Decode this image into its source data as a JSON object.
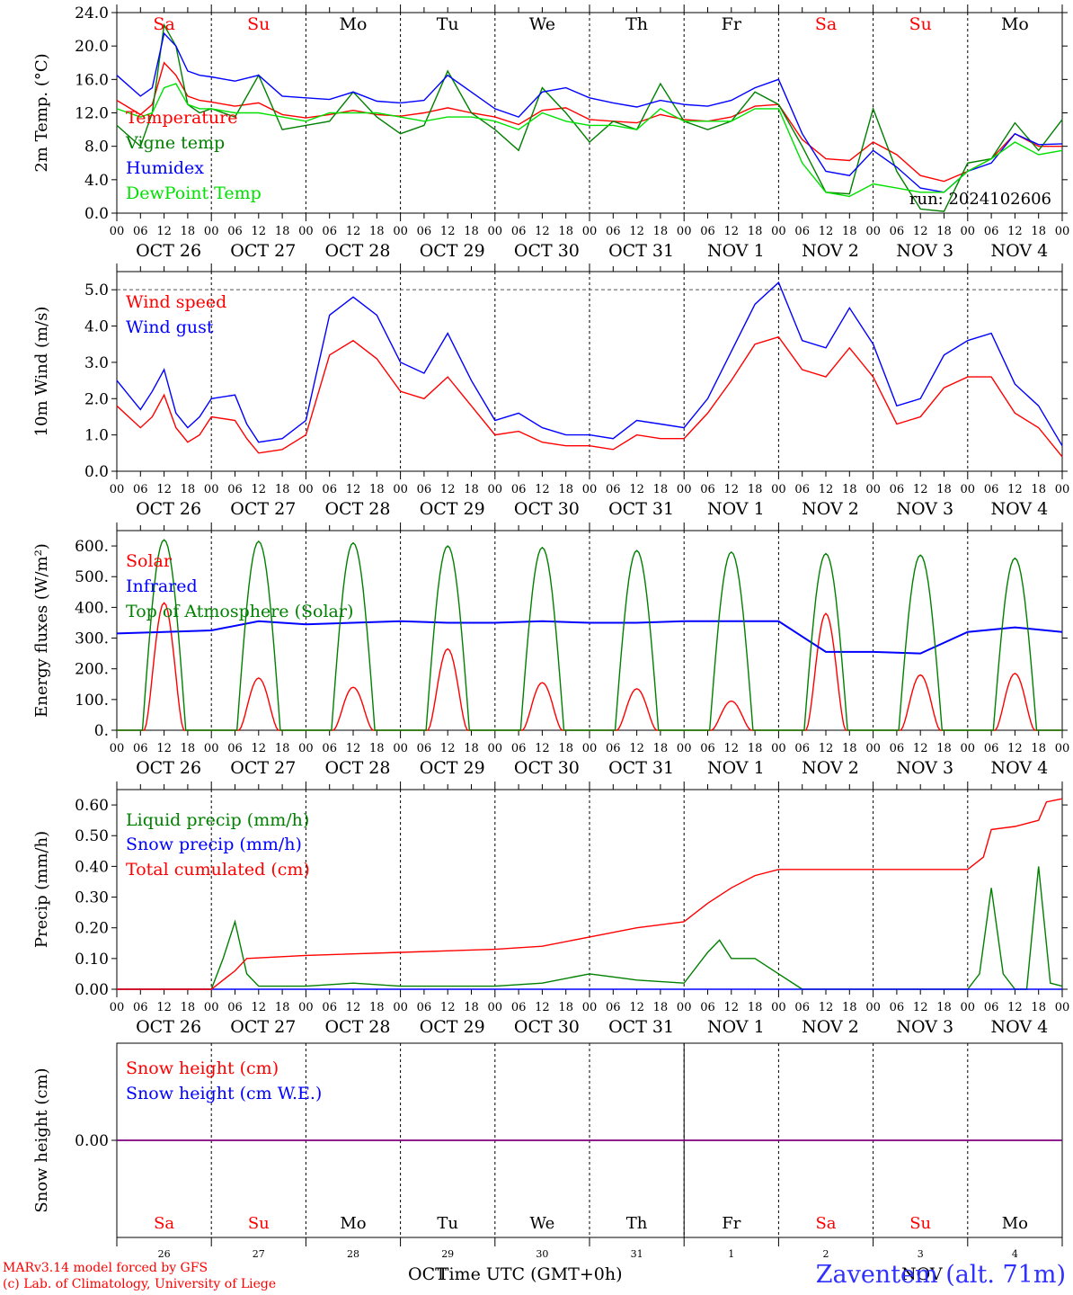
{
  "run_label": "run: 2024102606",
  "footer": {
    "model_line": "MARv3.14 model forced by GFS",
    "credit_line": "(c) Lab. of Climatology, University of Liege",
    "axis_title": "Time UTC (GMT+0h)",
    "left_month": "OCT",
    "right_month": "NOV",
    "station": "Zaventem (alt. 71m)"
  },
  "days": [
    {
      "weekday": "Sa",
      "date": "OCT 26",
      "num": "26",
      "weekend": true
    },
    {
      "weekday": "Su",
      "date": "OCT 27",
      "num": "27",
      "weekend": true
    },
    {
      "weekday": "Mo",
      "date": "OCT 28",
      "num": "28",
      "weekend": false
    },
    {
      "weekday": "Tu",
      "date": "OCT 29",
      "num": "29",
      "weekend": false
    },
    {
      "weekday": "We",
      "date": "OCT 30",
      "num": "30",
      "weekend": false
    },
    {
      "weekday": "Th",
      "date": "OCT 31",
      "num": "31",
      "weekend": false
    },
    {
      "weekday": "Fr",
      "date": "NOV  1",
      "num": "1",
      "weekend": false
    },
    {
      "weekday": "Sa",
      "date": "NOV  2",
      "num": "2",
      "weekend": true
    },
    {
      "weekday": "Su",
      "date": "NOV  3",
      "num": "3",
      "weekend": true
    },
    {
      "weekday": "Mo",
      "date": "NOV  4",
      "num": "4",
      "weekend": false
    }
  ],
  "hour_ticks": [
    "00",
    "06",
    "12",
    "18"
  ],
  "colors": {
    "red": "#ff0000",
    "green": "#008000",
    "blue": "#0000ff",
    "lightgreen": "#00e000",
    "purple": "#800080"
  },
  "chart_data": [
    {
      "type": "line",
      "ylabel": "2m Temp. (°C)",
      "ylim": [
        0,
        24
      ],
      "yticks": [
        "0.0",
        "4.0",
        "8.0",
        "12.0",
        "16.0",
        "20.0",
        "24.0"
      ],
      "x_unit": "hours since OCT 26 00 UTC",
      "series": [
        {
          "name": "Temperature",
          "color": "#ff0000",
          "x": [
            0,
            6,
            9,
            12,
            15,
            18,
            21,
            24,
            30,
            36,
            42,
            48,
            54,
            60,
            66,
            72,
            78,
            84,
            90,
            96,
            102,
            108,
            114,
            120,
            126,
            132,
            138,
            144,
            150,
            156,
            162,
            168,
            174,
            180,
            186,
            192,
            198,
            204,
            210,
            216,
            222,
            228,
            234,
            240
          ],
          "values": [
            13.5,
            11.8,
            13.0,
            18.0,
            16.5,
            14.0,
            13.5,
            13.3,
            12.8,
            13.2,
            11.8,
            11.4,
            11.8,
            12.3,
            11.8,
            11.6,
            12.0,
            12.6,
            12.0,
            11.5,
            10.6,
            12.3,
            12.6,
            11.2,
            11.0,
            10.8,
            11.8,
            11.2,
            11.0,
            11.5,
            12.8,
            13.0,
            8.8,
            6.5,
            6.3,
            8.5,
            7.0,
            4.5,
            3.8,
            5.0,
            6.5,
            9.5,
            8.0,
            8.0
          ]
        },
        {
          "name": "Vigne temp",
          "color": "#008000",
          "x": [
            0,
            6,
            9,
            12,
            15,
            18,
            21,
            24,
            30,
            36,
            42,
            48,
            54,
            60,
            66,
            72,
            78,
            84,
            90,
            96,
            102,
            108,
            114,
            120,
            126,
            132,
            138,
            144,
            150,
            156,
            162,
            168,
            174,
            180,
            186,
            192,
            198,
            204,
            210,
            216,
            222,
            228,
            234,
            240
          ],
          "values": [
            10.5,
            8.0,
            12.0,
            22.5,
            20.0,
            13.0,
            12.0,
            12.5,
            11.5,
            16.5,
            10.0,
            10.5,
            11.0,
            14.5,
            11.5,
            9.5,
            10.5,
            17.0,
            12.0,
            10.0,
            7.5,
            15.0,
            12.0,
            8.5,
            11.0,
            10.0,
            15.5,
            11.0,
            10.0,
            11.0,
            14.5,
            13.0,
            8.0,
            2.5,
            2.3,
            12.5,
            5.0,
            0.5,
            0.2,
            6.0,
            6.5,
            10.8,
            7.5,
            11.2
          ]
        },
        {
          "name": "Humidex",
          "color": "#0000ff",
          "x": [
            0,
            6,
            9,
            12,
            15,
            18,
            21,
            24,
            30,
            36,
            42,
            48,
            54,
            60,
            66,
            72,
            78,
            84,
            90,
            96,
            102,
            108,
            114,
            120,
            126,
            132,
            138,
            144,
            150,
            156,
            162,
            168,
            174,
            180,
            186,
            192,
            198,
            204,
            210,
            216,
            222,
            228,
            234,
            240
          ],
          "values": [
            16.5,
            14.0,
            15.0,
            21.5,
            20.0,
            17.0,
            16.5,
            16.3,
            15.8,
            16.5,
            14.0,
            13.8,
            13.6,
            14.5,
            13.4,
            13.2,
            13.5,
            16.5,
            14.5,
            12.5,
            11.5,
            14.5,
            15.0,
            13.8,
            13.2,
            12.7,
            13.5,
            13.0,
            12.8,
            13.5,
            15.0,
            16.0,
            9.5,
            5.0,
            4.5,
            7.5,
            5.5,
            3.0,
            2.5,
            5.0,
            6.0,
            9.5,
            8.2,
            8.3
          ]
        },
        {
          "name": "DewPoint Temp",
          "color": "#00e000",
          "x": [
            0,
            6,
            9,
            12,
            15,
            18,
            21,
            24,
            30,
            36,
            42,
            48,
            54,
            60,
            66,
            72,
            78,
            84,
            90,
            96,
            102,
            108,
            114,
            120,
            126,
            132,
            138,
            144,
            150,
            156,
            162,
            168,
            174,
            180,
            186,
            192,
            198,
            204,
            210,
            216,
            222,
            228,
            234,
            240
          ],
          "values": [
            12.5,
            11.5,
            12.0,
            15.0,
            15.5,
            13.0,
            12.5,
            12.5,
            12.0,
            12.0,
            11.5,
            11.0,
            12.0,
            12.0,
            12.0,
            11.5,
            11.0,
            11.5,
            11.5,
            11.0,
            10.0,
            12.0,
            11.0,
            10.5,
            10.5,
            10.0,
            12.5,
            11.0,
            11.0,
            11.0,
            12.5,
            12.5,
            6.0,
            2.5,
            2.0,
            3.5,
            3.0,
            2.5,
            2.5,
            5.0,
            6.5,
            8.5,
            7.0,
            7.5
          ]
        }
      ]
    },
    {
      "type": "line",
      "ylabel": "10m Wind (m/s)",
      "ylim": [
        0,
        5.5
      ],
      "yticks": [
        "0.0",
        "1.0",
        "2.0",
        "3.0",
        "4.0",
        "5.0"
      ],
      "reference_line": 5.0,
      "series": [
        {
          "name": "Wind speed",
          "color": "#ff0000",
          "x": [
            0,
            6,
            9,
            12,
            15,
            18,
            21,
            24,
            30,
            33,
            36,
            42,
            48,
            54,
            60,
            66,
            72,
            78,
            84,
            90,
            96,
            102,
            108,
            114,
            120,
            126,
            132,
            138,
            144,
            150,
            156,
            162,
            168,
            174,
            180,
            186,
            192,
            198,
            204,
            210,
            216,
            222,
            228,
            234,
            240
          ],
          "values": [
            1.8,
            1.2,
            1.5,
            2.1,
            1.2,
            0.8,
            1.0,
            1.5,
            1.4,
            0.9,
            0.5,
            0.6,
            1.0,
            3.2,
            3.6,
            3.1,
            2.2,
            2.0,
            2.6,
            1.8,
            1.0,
            1.1,
            0.8,
            0.7,
            0.7,
            0.6,
            1.0,
            0.9,
            0.9,
            1.6,
            2.5,
            3.5,
            3.7,
            2.8,
            2.6,
            3.4,
            2.6,
            1.3,
            1.5,
            2.3,
            2.6,
            2.6,
            1.6,
            1.2,
            0.4
          ]
        },
        {
          "name": "Wind gust",
          "color": "#0000ff",
          "x": [
            0,
            6,
            9,
            12,
            15,
            18,
            21,
            24,
            30,
            33,
            36,
            42,
            48,
            54,
            60,
            66,
            72,
            78,
            84,
            90,
            96,
            102,
            108,
            114,
            120,
            126,
            132,
            138,
            144,
            150,
            156,
            162,
            168,
            174,
            180,
            186,
            192,
            198,
            204,
            210,
            216,
            222,
            228,
            234,
            240
          ],
          "values": [
            2.5,
            1.7,
            2.2,
            2.8,
            1.6,
            1.2,
            1.5,
            2.0,
            2.1,
            1.3,
            0.8,
            0.9,
            1.4,
            4.3,
            4.8,
            4.3,
            3.0,
            2.7,
            3.8,
            2.5,
            1.4,
            1.6,
            1.2,
            1.0,
            1.0,
            0.9,
            1.4,
            1.3,
            1.2,
            2.0,
            3.3,
            4.6,
            5.2,
            3.6,
            3.4,
            4.5,
            3.5,
            1.8,
            2.0,
            3.2,
            3.6,
            3.8,
            2.4,
            1.8,
            0.7
          ]
        }
      ]
    },
    {
      "type": "line",
      "ylabel": "Energy fluxes (W/m²)",
      "ylim": [
        0,
        650
      ],
      "yticks": [
        "0.",
        "100.",
        "200.",
        "300.",
        "400.",
        "500.",
        "600."
      ],
      "series": [
        {
          "name": "Solar",
          "color": "#ff0000",
          "daily_peaks": [
            415,
            170,
            140,
            265,
            155,
            135,
            95,
            380,
            180,
            185
          ],
          "peak_hour": 12
        },
        {
          "name": "Infrared",
          "color": "#0000ff",
          "x": [
            0,
            12,
            24,
            36,
            48,
            60,
            72,
            84,
            96,
            108,
            120,
            132,
            144,
            156,
            168,
            180,
            192,
            204,
            216,
            228,
            240
          ],
          "values": [
            315,
            320,
            325,
            355,
            345,
            350,
            355,
            350,
            350,
            355,
            350,
            350,
            355,
            355,
            355,
            255,
            255,
            250,
            320,
            335,
            320
          ]
        },
        {
          "name": "Top of Atmosphere (Solar)",
          "color": "#008000",
          "daily_peaks": [
            620,
            615,
            610,
            600,
            595,
            585,
            580,
            575,
            570,
            560
          ],
          "peak_hour": 12
        }
      ]
    },
    {
      "type": "line",
      "ylabel": "Precip (mm/h)",
      "ylim": [
        0,
        0.65
      ],
      "yticks": [
        "0.00",
        "0.10",
        "0.20",
        "0.30",
        "0.40",
        "0.50",
        "0.60"
      ],
      "series": [
        {
          "name": "Liquid precip (mm/h)",
          "color": "#008000",
          "x": [
            0,
            24,
            27,
            30,
            33,
            36,
            42,
            48,
            60,
            72,
            96,
            108,
            120,
            126,
            132,
            144,
            150,
            153,
            156,
            162,
            168,
            174,
            216,
            219,
            222,
            225,
            228,
            231,
            234,
            237,
            240
          ],
          "values": [
            0.0,
            0.0,
            0.1,
            0.22,
            0.05,
            0.01,
            0.01,
            0.01,
            0.02,
            0.01,
            0.01,
            0.02,
            0.05,
            0.04,
            0.03,
            0.02,
            0.12,
            0.16,
            0.1,
            0.1,
            0.05,
            0.0,
            0.0,
            0.05,
            0.33,
            0.05,
            0.0,
            0.0,
            0.4,
            0.02,
            0.01
          ]
        },
        {
          "name": "Snow precip (mm/h)",
          "color": "#0000ff",
          "x": [
            0,
            240
          ],
          "values": [
            0,
            0
          ]
        },
        {
          "name": "Total cumulated (cm)",
          "color": "#ff0000",
          "x": [
            0,
            24,
            30,
            33,
            48,
            72,
            96,
            108,
            120,
            132,
            144,
            150,
            156,
            162,
            168,
            216,
            220,
            222,
            228,
            234,
            236,
            240
          ],
          "values": [
            0.0,
            0.0,
            0.06,
            0.1,
            0.11,
            0.12,
            0.13,
            0.14,
            0.17,
            0.2,
            0.22,
            0.28,
            0.33,
            0.37,
            0.39,
            0.39,
            0.43,
            0.52,
            0.53,
            0.55,
            0.61,
            0.62
          ]
        }
      ]
    },
    {
      "type": "line",
      "ylabel": "Snow height (cm)",
      "ylim": [
        -1,
        1
      ],
      "yticks": [
        "0.00"
      ],
      "series": [
        {
          "name": "Snow height (cm)",
          "color": "#ff0000",
          "x": [
            0,
            240
          ],
          "values": [
            0,
            0
          ]
        },
        {
          "name": "Snow height (cm W.E.)",
          "color": "#0000ff",
          "x": [
            0,
            240
          ],
          "values": [
            0,
            0
          ]
        }
      ]
    }
  ]
}
